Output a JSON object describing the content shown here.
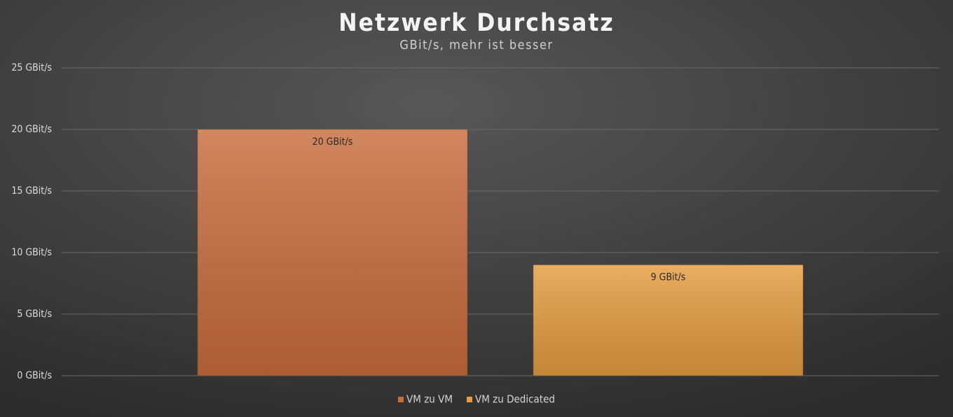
{
  "chart_data": {
    "type": "bar",
    "title": "Netzwerk Durchsatz",
    "subtitle": "GBit/s, mehr ist besser",
    "categories": [
      null
    ],
    "series": [
      {
        "name": "VM zu VM",
        "color": "#c86c3c",
        "values": [
          20
        ],
        "value_labels": [
          "20 GBit/s"
        ]
      },
      {
        "name": "VM zu Dedicated",
        "color": "#e49c40",
        "values": [
          9
        ],
        "value_labels": [
          "9 GBit/s"
        ]
      }
    ],
    "ylim": [
      0,
      25
    ],
    "yticks": [
      {
        "value": 0,
        "label": "0 GBit/s"
      },
      {
        "value": 5,
        "label": "5 GBit/s"
      },
      {
        "value": 10,
        "label": "10 GBit/s"
      },
      {
        "value": 15,
        "label": "15 GBit/s"
      },
      {
        "value": 20,
        "label": "20 GBit/s"
      },
      {
        "value": 25,
        "label": "25 GBit/s"
      }
    ],
    "grid": true,
    "legend": "bottom"
  }
}
